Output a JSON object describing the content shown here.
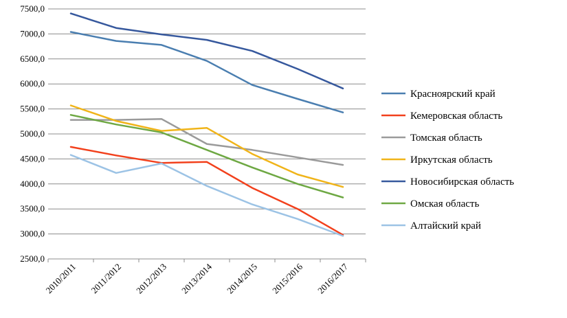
{
  "chart_data": {
    "type": "line",
    "title": "",
    "xlabel": "",
    "ylabel": "",
    "categories": [
      "2010/2011",
      "2011/2012",
      "2012/2013",
      "2013/2014",
      "2014/2015",
      "2015/2016",
      "2016/2017"
    ],
    "ylim": [
      2500,
      7500
    ],
    "yticks": [
      "2500,0",
      "3000,0",
      "3500,0",
      "4000,0",
      "4500,0",
      "5000,0",
      "5500,0",
      "6000,0",
      "6500,0",
      "7000,0",
      "7500,0"
    ],
    "grid": true,
    "legend_position": "right",
    "series": [
      {
        "name": "Красноярский край",
        "color": "#4a7eb0",
        "values": [
          7040,
          6860,
          6780,
          6460,
          5980,
          5700,
          5430
        ]
      },
      {
        "name": "Кемеровская область",
        "color": "#f2401c",
        "values": [
          4740,
          4570,
          4420,
          4440,
          3920,
          3500,
          2980
        ]
      },
      {
        "name": "Томская область",
        "color": "#9a9a9a",
        "values": [
          5280,
          5280,
          5300,
          4800,
          4680,
          4530,
          4380
        ]
      },
      {
        "name": "Иркутская область",
        "color": "#f0b419",
        "values": [
          5570,
          5260,
          5060,
          5120,
          4600,
          4190,
          3940
        ]
      },
      {
        "name": "Новосибирская область",
        "color": "#36589d",
        "values": [
          7410,
          7120,
          6990,
          6880,
          6660,
          6300,
          5910
        ]
      },
      {
        "name": "Омская область",
        "color": "#6ea843",
        "values": [
          5380,
          5190,
          5030,
          4680,
          4330,
          4000,
          3730
        ]
      },
      {
        "name": "Алтайский край",
        "color": "#9cc3e5",
        "values": [
          4580,
          4220,
          4410,
          3960,
          3590,
          3300,
          2960
        ]
      }
    ]
  }
}
